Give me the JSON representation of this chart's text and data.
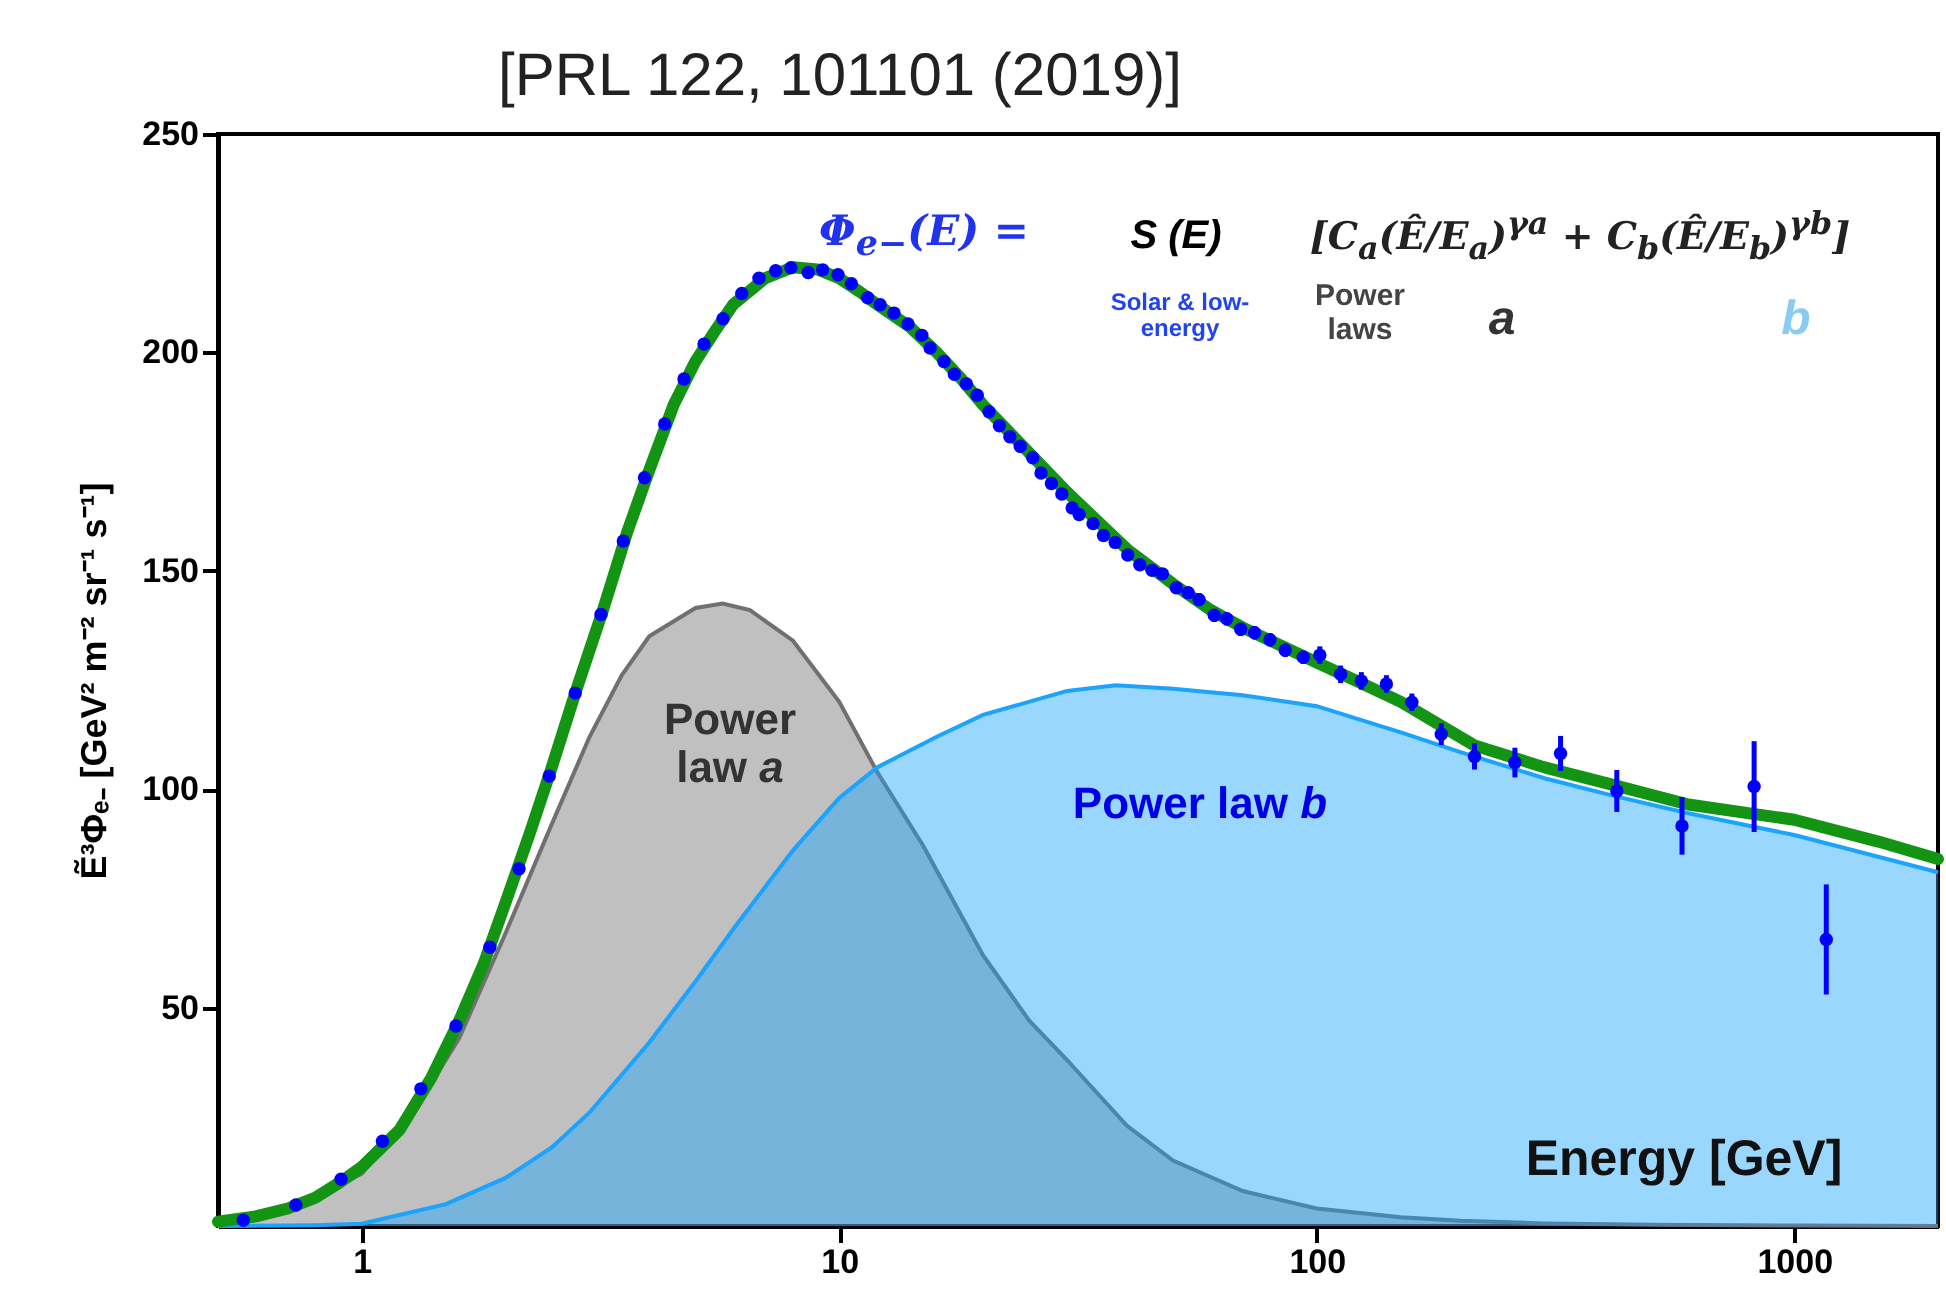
{
  "chart_data": {
    "type": "scatter",
    "title": "[PRL 122, 101101 (2019)]",
    "xlabel": "Energy [GeV]",
    "ylabel": "Ẽ³Φₑ₋ [GeV² m⁻² sr⁻¹ s⁻¹]",
    "annotations": [
      "Φ$_{e−}$(E) =",
      "S (E)",
      "Solar & low-energy",
      "[C$_{a}$(Ê/E$_{a}$)$^{γa}$ + C$_{b}$(Ê/E$_{b}$)$^{γb}$]",
      "Power laws",
      "a",
      "b"
    ],
    "log": "x",
    "xlim": [
      0.5,
      2000
    ],
    "xticks": [
      1,
      10,
      100,
      1000
    ],
    "ylim": [
      0,
      250
    ],
    "yticks": [
      50,
      100,
      150,
      200,
      250
    ],
    "series": [
      {
        "name": "Power law a",
        "type": "area",
        "color": "#707070",
        "x": [
          0.5,
          0.7,
          1,
          1.3,
          1.6,
          2,
          2.5,
          3,
          3.5,
          4,
          5,
          5.7,
          6.5,
          8,
          10,
          12,
          15,
          20,
          25,
          30,
          40,
          50,
          70,
          100,
          150,
          200,
          300,
          500,
          1000,
          2000
        ],
        "values": [
          0.8,
          3.5,
          12,
          27,
          43,
          67,
          92,
          112,
          126,
          135,
          141.5,
          142.5,
          141,
          134,
          120,
          104,
          87,
          62,
          47,
          38,
          23,
          15,
          8,
          4,
          2,
          1.2,
          0.6,
          0.3,
          0.1,
          0
        ]
      },
      {
        "name": "Power law b",
        "type": "area",
        "color": "#1aa3ff",
        "x": [
          0.5,
          0.8,
          1,
          1.5,
          2,
          2.5,
          3,
          4,
          5,
          6,
          8,
          10,
          12,
          16,
          20,
          30,
          38,
          50,
          70,
          100,
          150,
          200,
          300,
          425,
          600,
          1000,
          2000
        ],
        "values": [
          0,
          0.2,
          0.5,
          5,
          11,
          18,
          26,
          42,
          56,
          68,
          86,
          98,
          105,
          112,
          117,
          122.5,
          123.8,
          123,
          121.5,
          119,
          113,
          108.5,
          102.5,
          98.3,
          94.5,
          89.5,
          81
        ]
      },
      {
        "type": "line",
        "color": "#139413",
        "x": [
          0.5,
          0.6,
          0.7,
          0.8,
          0.9,
          1,
          1.2,
          1.4,
          1.6,
          1.8,
          2,
          2.25,
          2.5,
          2.8,
          3.2,
          3.6,
          4,
          4.5,
          5,
          5.5,
          6,
          7,
          8,
          9,
          10,
          11,
          12,
          14,
          16,
          18,
          20,
          25,
          30,
          40,
          50,
          60,
          70,
          80,
          100,
          120,
          150,
          214,
          300,
          400,
          600,
          1000,
          1500,
          2000
        ],
        "values": [
          1,
          2.2,
          4,
          6.5,
          10,
          13.5,
          22,
          34,
          47,
          60,
          74,
          90,
          105,
          122,
          141,
          159,
          173,
          188,
          198,
          205,
          211,
          217,
          219.5,
          219,
          217,
          214,
          211,
          206,
          200,
          194,
          188,
          177,
          168,
          155,
          147,
          141,
          137,
          134,
          129,
          125,
          120,
          110,
          105,
          101.5,
          96.5,
          93,
          88,
          84
        ]
      },
      {
        "marker": "circle",
        "color": "#0000ff",
        "x": [
          0.565,
          0.728,
          0.905,
          1.105,
          1.33,
          1.575,
          1.855,
          2.135,
          2.47,
          2.8,
          3.17,
          3.53,
          3.91,
          4.31,
          4.73,
          5.21,
          5.71,
          6.25,
          6.79,
          7.36,
          7.92,
          8.61,
          9.23,
          9.94,
          10.6,
          11.47,
          12.18,
          13.02,
          13.93,
          14.89,
          15.5,
          16.57,
          17.42,
          18.45,
          19.45,
          20.59,
          21.65,
          22.77,
          23.94,
          25.42,
          26.46,
          27.82,
          29.25,
          30.75,
          31.8,
          34,
          35.76,
          37.84,
          40.2,
          42.6,
          45.2,
          47.5,
          50.8,
          53.8,
          56.7,
          61,
          64.8,
          69.3,
          74.1,
          79.8,
          85.9,
          93.7,
          101.5,
          112.2,
          124,
          139.9,
          158.2,
          182.3,
          214,
          260,
          324,
          425,
          582,
          824,
          1167
        ],
        "values": [
          1.3,
          4.8,
          10.7,
          19.4,
          31.4,
          45.8,
          63.8,
          81.8,
          103,
          122,
          140,
          156.8,
          171.3,
          183.6,
          193.9,
          201.9,
          207.7,
          213.5,
          217,
          218.7,
          219.4,
          218.3,
          218.9,
          217.8,
          215.7,
          212.5,
          210.9,
          209,
          206.5,
          203.9,
          201,
          197.9,
          195,
          192.8,
          190.2,
          186.4,
          183.2,
          180.7,
          178.5,
          175.9,
          172.4,
          170,
          167.6,
          164.4,
          162.9,
          160.8,
          158.1,
          156.5,
          153.6,
          151.4,
          150.1,
          149.3,
          146.1,
          145,
          143.4,
          139.8,
          139,
          136.6,
          135.8,
          134.2,
          131.8,
          130.2,
          130.7,
          126.3,
          124.8,
          124.1,
          119.9,
          112.6,
          107.5,
          106.1,
          108.2,
          99.6,
          91.6,
          100.6,
          65.6
        ],
        "errors": [
          null,
          null,
          null,
          null,
          null,
          null,
          null,
          null,
          null,
          null,
          null,
          null,
          null,
          null,
          null,
          null,
          null,
          null,
          null,
          null,
          null,
          null,
          null,
          null,
          null,
          null,
          null,
          null,
          null,
          null,
          null,
          null,
          null,
          null,
          null,
          null,
          null,
          null,
          null,
          null,
          null,
          null,
          null,
          null,
          null,
          null,
          null,
          null,
          null,
          null,
          null,
          null,
          null,
          null,
          1.5,
          1.5,
          1.5,
          1.5,
          1.5,
          1.5,
          1.5,
          1.5,
          2,
          2,
          2,
          2,
          2,
          2.5,
          3,
          3.4,
          4,
          4.8,
          6.6,
          10.4,
          12.6
        ]
      }
    ]
  }
}
